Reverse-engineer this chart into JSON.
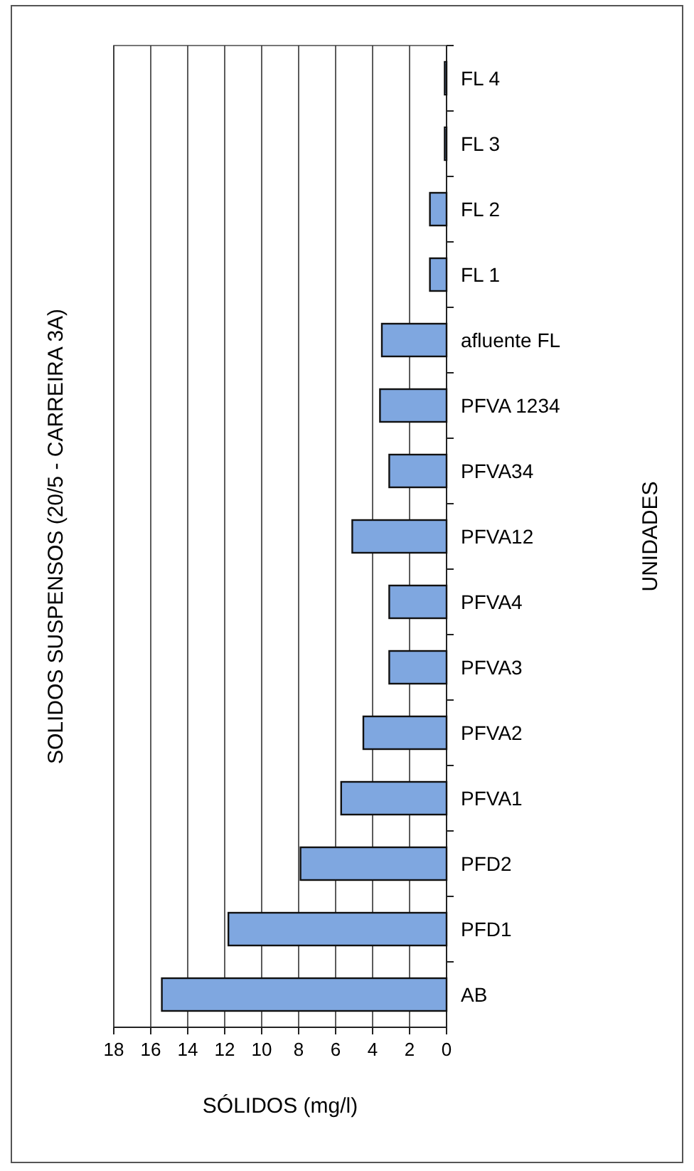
{
  "chart_data": {
    "type": "bar",
    "orientation": "horizontal",
    "title": "SOLIDOS SUSPENSOS  (20/5 - CARREIRA 3A)",
    "xlabel": "SÓLIDOS (mg/l)",
    "ylabel": "UNIDADES",
    "categories": [
      "FL 4",
      "FL 3",
      "FL 2",
      "FL 1",
      "afluente FL",
      "PFVA 1234",
      "PFVA34",
      "PFVA12",
      "PFVA4",
      "PFVA3",
      "PFVA2",
      "PFVA1",
      "PFD2",
      "PFD1",
      "AB"
    ],
    "values": [
      0.1,
      0.1,
      0.9,
      0.9,
      3.5,
      3.6,
      3.1,
      5.1,
      3.1,
      3.1,
      4.5,
      5.7,
      7.9,
      11.8,
      15.4
    ],
    "color": "#7fa7e0",
    "xlim": [
      18,
      0
    ],
    "xticks": [
      18,
      16,
      14,
      12,
      10,
      8,
      6,
      4,
      2,
      0
    ],
    "grid": "x"
  }
}
